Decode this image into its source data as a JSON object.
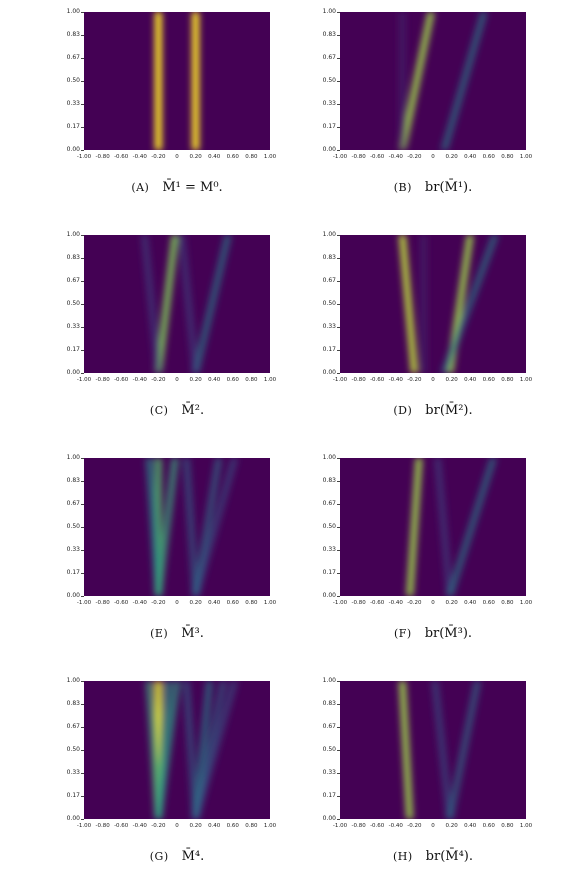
{
  "yticks": [
    "1.00",
    "0.83",
    "0.67",
    "0.50",
    "0.33",
    "0.17",
    "0.00"
  ],
  "xticks": [
    "-1.00",
    "-0.80",
    "-0.60",
    "-0.40",
    "-0.20",
    "0",
    "0.20",
    "0.40",
    "0.60",
    "0.80",
    "1.00"
  ],
  "colors": {
    "background": "#440154",
    "peak": "#fde725",
    "mid": "#21918c",
    "low": "#3b528b"
  },
  "captions": [
    {
      "letter": "(A)",
      "text": "M̄¹ = M⁰."
    },
    {
      "letter": "(B)",
      "text": "br(M̄¹)."
    },
    {
      "letter": "(C)",
      "text": "M̄²."
    },
    {
      "letter": "(D)",
      "text": "br(M̄²)."
    },
    {
      "letter": "(E)",
      "text": "M̄³."
    },
    {
      "letter": "(F)",
      "text": "br(M̄³)."
    },
    {
      "letter": "(G)",
      "text": "M̄⁴."
    },
    {
      "letter": "(H)",
      "text": "br(M̄⁴)."
    }
  ],
  "chart_data": [
    {
      "type": "heatmap",
      "xlim": [
        -1,
        1
      ],
      "ylim": [
        0,
        1
      ],
      "series": [
        {
          "x0": -0.2,
          "x1": -0.2,
          "strength": 1.0
        },
        {
          "x0": 0.2,
          "x1": 0.2,
          "strength": 1.0
        }
      ]
    },
    {
      "type": "heatmap",
      "xlim": [
        -1,
        1
      ],
      "ylim": [
        0,
        1
      ],
      "series": [
        {
          "x0": -0.33,
          "x1": -0.02,
          "strength": 0.85
        },
        {
          "x0": 0.12,
          "x1": 0.55,
          "strength": 0.45
        },
        {
          "x0": -0.33,
          "x1": -0.33,
          "strength": 0.15
        }
      ]
    },
    {
      "type": "heatmap",
      "xlim": [
        -1,
        1
      ],
      "ylim": [
        0,
        1
      ],
      "series": [
        {
          "x0": -0.2,
          "x1": -0.02,
          "strength": 0.8
        },
        {
          "x0": 0.2,
          "x1": 0.55,
          "strength": 0.45
        },
        {
          "x0": -0.2,
          "x1": -0.35,
          "strength": 0.25
        },
        {
          "x0": 0.2,
          "x1": 0.05,
          "strength": 0.25
        }
      ]
    },
    {
      "type": "heatmap",
      "xlim": [
        -1,
        1
      ],
      "ylim": [
        0,
        1
      ],
      "series": [
        {
          "x0": -0.2,
          "x1": -0.33,
          "strength": 0.9
        },
        {
          "x0": 0.18,
          "x1": 0.4,
          "strength": 0.85
        },
        {
          "x0": 0.12,
          "x1": 0.67,
          "strength": 0.45
        },
        {
          "x0": -0.1,
          "x1": -0.1,
          "strength": 0.15
        }
      ]
    },
    {
      "type": "heatmap",
      "xlim": [
        -1,
        1
      ],
      "ylim": [
        0,
        1
      ],
      "series": [
        {
          "x0": -0.2,
          "x1": -0.2,
          "strength": 0.7
        },
        {
          "x0": -0.2,
          "x1": -0.3,
          "strength": 0.5
        },
        {
          "x0": -0.2,
          "x1": -0.02,
          "strength": 0.6
        },
        {
          "x0": 0.2,
          "x1": 0.1,
          "strength": 0.35
        },
        {
          "x0": 0.2,
          "x1": 0.45,
          "strength": 0.4
        },
        {
          "x0": 0.2,
          "x1": 0.62,
          "strength": 0.3
        }
      ]
    },
    {
      "type": "heatmap",
      "xlim": [
        -1,
        1
      ],
      "ylim": [
        0,
        1
      ],
      "series": [
        {
          "x0": -0.25,
          "x1": -0.15,
          "strength": 0.85
        },
        {
          "x0": 0.18,
          "x1": 0.05,
          "strength": 0.25
        },
        {
          "x0": 0.18,
          "x1": 0.65,
          "strength": 0.45
        }
      ]
    },
    {
      "type": "heatmap",
      "xlim": [
        -1,
        1
      ],
      "ylim": [
        0,
        1
      ],
      "series": [
        {
          "x0": -0.2,
          "x1": -0.2,
          "strength": 0.95
        },
        {
          "x0": -0.2,
          "x1": -0.3,
          "strength": 0.6
        },
        {
          "x0": -0.2,
          "x1": -0.1,
          "strength": 0.55
        },
        {
          "x0": -0.2,
          "x1": 0.0,
          "strength": 0.55
        },
        {
          "x0": 0.2,
          "x1": 0.1,
          "strength": 0.35
        },
        {
          "x0": 0.2,
          "x1": 0.35,
          "strength": 0.45
        },
        {
          "x0": 0.2,
          "x1": 0.5,
          "strength": 0.35
        },
        {
          "x0": 0.2,
          "x1": 0.62,
          "strength": 0.3
        }
      ]
    },
    {
      "type": "heatmap",
      "xlim": [
        -1,
        1
      ],
      "ylim": [
        0,
        1
      ],
      "series": [
        {
          "x0": -0.25,
          "x1": -0.33,
          "strength": 0.85
        },
        {
          "x0": 0.18,
          "x1": 0.02,
          "strength": 0.3
        },
        {
          "x0": 0.18,
          "x1": 0.48,
          "strength": 0.4
        }
      ]
    }
  ]
}
